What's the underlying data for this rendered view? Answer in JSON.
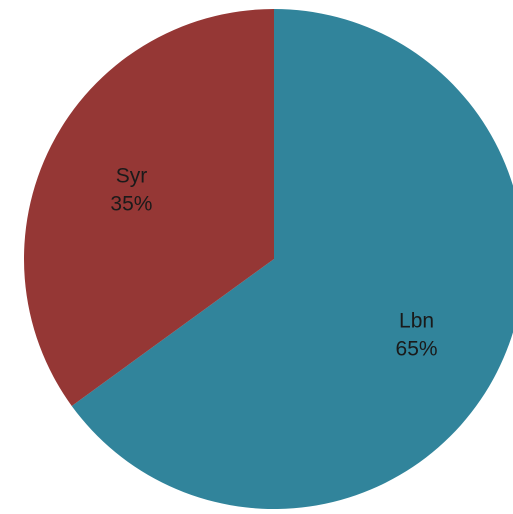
{
  "chart_data": {
    "type": "pie",
    "slices": [
      {
        "name": "Lbn",
        "value": 65,
        "label": "65%",
        "color": "#31849b"
      },
      {
        "name": "Syr",
        "value": 35,
        "label": "35%",
        "color": "#953735"
      }
    ],
    "start_angle_deg": 0,
    "direction": "clockwise",
    "title": "",
    "legend": "none"
  }
}
